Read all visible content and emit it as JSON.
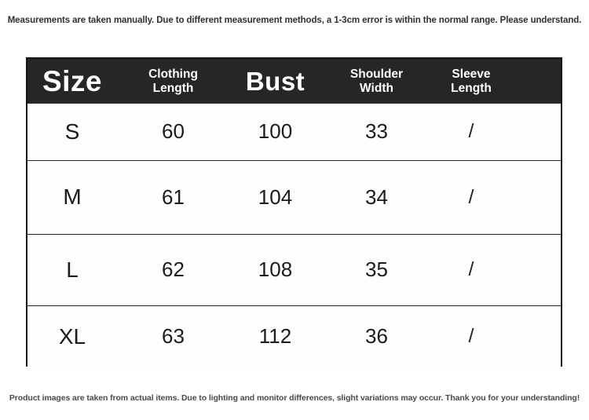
{
  "disclaimers": {
    "top": "Measurements are taken manually. Due to different measurement methods, a 1-3cm error is within the normal range. Please understand.",
    "bottom": "Product images are taken from actual items. Due to lighting and monitor differences, slight variations may occur. Thank you for your understanding!"
  },
  "size_chart": {
    "columns": [
      {
        "id": "size",
        "label": "Size",
        "lines": [
          "Size"
        ]
      },
      {
        "id": "clothing_length",
        "label": "Clothing Length",
        "lines": [
          "Clothing",
          "Length"
        ]
      },
      {
        "id": "bust",
        "label": "Bust",
        "lines": [
          "Bust"
        ]
      },
      {
        "id": "shoulder_width",
        "label": "Shoulder Width",
        "lines": [
          "Shoulder",
          "Width"
        ]
      },
      {
        "id": "sleeve_length",
        "label": "Sleeve Length",
        "lines": [
          "Sleeve",
          "Length"
        ]
      }
    ],
    "rows": [
      {
        "size": "S",
        "clothing_length": "60",
        "bust": "100",
        "shoulder_width": "33",
        "sleeve_length": "/"
      },
      {
        "size": "M",
        "clothing_length": "61",
        "bust": "104",
        "shoulder_width": "34",
        "sleeve_length": "/"
      },
      {
        "size": "L",
        "clothing_length": "62",
        "bust": "108",
        "shoulder_width": "35",
        "sleeve_length": "/"
      },
      {
        "size": "XL",
        "clothing_length": "63",
        "bust": "112",
        "shoulder_width": "36",
        "sleeve_length": "/"
      }
    ]
  },
  "colors": {
    "page_bg": "#ffffff",
    "header_bg": "#262626",
    "header_text": "#ffffff",
    "table_border": "#161616",
    "row_divider": "#262626",
    "body_text": "#1b1b1b",
    "top_text": "#303030",
    "bottom_text": "#4a4a4a"
  }
}
